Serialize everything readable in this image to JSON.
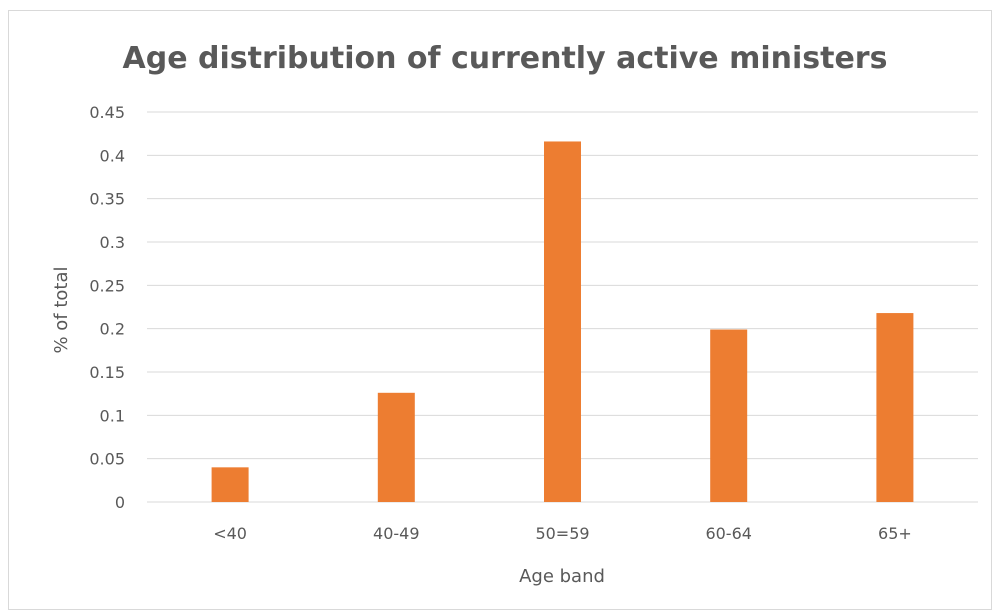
{
  "chart_data": {
    "type": "bar",
    "title": "Age distribution of currently active ministers",
    "xlabel": "Age band",
    "ylabel": "% of total",
    "categories": [
      "<40",
      "40-49",
      "50=59",
      "60-64",
      "65+"
    ],
    "values": [
      0.04,
      0.126,
      0.416,
      0.199,
      0.218
    ],
    "ylim": [
      0,
      0.45
    ],
    "yticks": [
      "0",
      "0.05",
      "0.1",
      "0.15",
      "0.2",
      "0.25",
      "0.3",
      "0.35",
      "0.4",
      "0.45"
    ],
    "grid": true,
    "legend": "none",
    "bar_color": "#ED7D31",
    "grid_color": "#d9d9d9",
    "text_color": "#595959"
  }
}
